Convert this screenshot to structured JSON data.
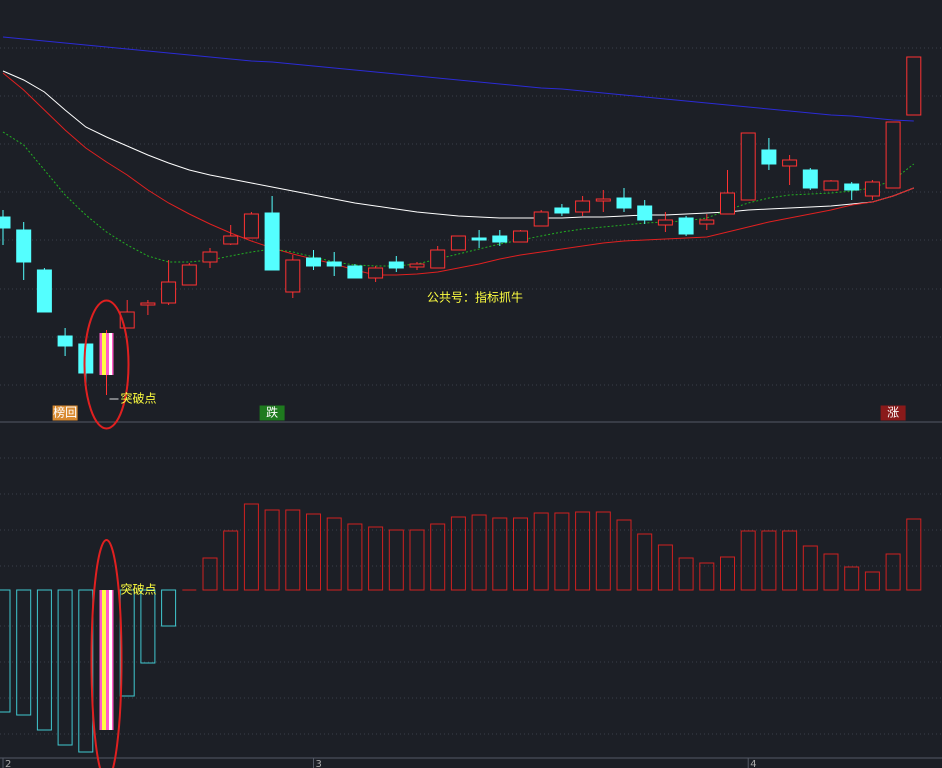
{
  "chart_data": [
    {
      "type": "candlestick",
      "open": [
        20.3,
        19.0,
        15.0,
        8.4,
        7.6,
        4.5,
        9.2,
        11.5,
        11.7,
        13.5,
        15.8,
        17.6,
        18.2,
        20.7,
        12.8,
        16.2,
        15.8,
        15.4,
        14.2,
        15.8,
        15.3,
        15.2,
        17.0,
        18.2,
        18.4,
        17.8,
        19.4,
        21.2,
        20.8,
        21.9,
        22.2,
        21.4,
        19.5,
        20.2,
        19.6,
        20.6,
        22.0,
        27.0,
        25.4,
        25.0,
        23.0,
        23.6,
        22.4,
        23.2,
        30.5
      ],
      "high": [
        21.0,
        19.8,
        15.2,
        9.2,
        8.0,
        9.0,
        12.0,
        12.0,
        16.0,
        15.7,
        17.2,
        19.5,
        20.8,
        22.4,
        16.5,
        17.0,
        16.8,
        15.6,
        15.4,
        16.4,
        15.8,
        17.4,
        18.4,
        19.0,
        19.0,
        19.0,
        21.0,
        21.6,
        22.4,
        23.0,
        23.2,
        22.0,
        20.8,
        20.4,
        20.6,
        25.0,
        28.7,
        28.2,
        26.5,
        25.2,
        24.0,
        23.8,
        24.0,
        29.8,
        36.3
      ],
      "low": [
        17.5,
        14.0,
        10.8,
        6.4,
        3.5,
        2.5,
        9.2,
        10.5,
        11.5,
        13.5,
        15.2,
        17.5,
        18.2,
        15.0,
        12.2,
        15.0,
        14.4,
        14.2,
        13.8,
        14.8,
        15.0,
        15.2,
        17.0,
        17.2,
        17.4,
        17.8,
        19.4,
        20.4,
        20.4,
        20.8,
        20.8,
        19.6,
        18.8,
        18.4,
        19.0,
        20.6,
        22.0,
        25.0,
        23.5,
        23.0,
        23.0,
        22.0,
        22.0,
        23.2,
        30.5
      ],
      "close": [
        19.2,
        15.8,
        10.8,
        7.4,
        4.7,
        8.7,
        10.8,
        11.7,
        13.8,
        15.5,
        16.8,
        18.4,
        20.6,
        15.0,
        16.0,
        15.4,
        15.4,
        14.2,
        15.2,
        15.2,
        15.6,
        17.0,
        18.4,
        18.0,
        17.8,
        18.9,
        20.8,
        20.7,
        21.9,
        22.1,
        21.2,
        20.0,
        20.0,
        18.6,
        20.0,
        22.7,
        28.7,
        25.6,
        26.0,
        23.2,
        23.9,
        23.0,
        23.8,
        29.8,
        36.3
      ],
      "up_color": "#ff3232",
      "down_color": "#54ffff",
      "ylim": [
        0,
        39
      ],
      "series": [
        {
          "color": "#2b2bd6",
          "values": [
            38.3,
            38.1,
            37.9,
            37.7,
            37.5,
            37.3,
            37.1,
            36.9,
            36.7,
            36.5,
            36.3,
            36.1,
            35.9,
            35.8,
            35.6,
            35.4,
            35.2,
            35.0,
            34.8,
            34.6,
            34.4,
            34.2,
            34.0,
            33.8,
            33.6,
            33.4,
            33.2,
            33.1,
            32.9,
            32.7,
            32.5,
            32.3,
            32.1,
            31.9,
            31.7,
            31.5,
            31.3,
            31.1,
            30.9,
            30.7,
            30.5,
            30.4,
            30.2,
            30.0,
            29.9
          ]
        },
        {
          "color": "#ffffff",
          "values": [
            34.9,
            34.0,
            32.8,
            31.0,
            29.3,
            28.3,
            27.4,
            26.5,
            25.7,
            25.0,
            24.5,
            24.1,
            23.7,
            23.3,
            22.9,
            22.5,
            22.1,
            21.7,
            21.4,
            21.1,
            20.8,
            20.6,
            20.4,
            20.3,
            20.2,
            20.2,
            20.2,
            20.2,
            20.3,
            20.3,
            20.4,
            20.5,
            20.5,
            20.6,
            20.7,
            20.8,
            21.0,
            21.1,
            21.2,
            21.3,
            21.4,
            21.6,
            21.8,
            22.4,
            23.2
          ]
        },
        {
          "color": "#e02020",
          "values": [
            34.7,
            33.0,
            31.0,
            29.0,
            27.2,
            25.8,
            24.5,
            23.0,
            21.7,
            20.6,
            19.6,
            18.7,
            17.9,
            17.2,
            16.6,
            16.1,
            15.6,
            15.0,
            14.5,
            14.5,
            14.6,
            14.8,
            15.2,
            15.6,
            16.1,
            16.5,
            16.8,
            17.1,
            17.4,
            17.7,
            17.9,
            18.0,
            18.1,
            18.2,
            18.3,
            18.8,
            19.3,
            19.8,
            20.2,
            20.6,
            21.0,
            21.5,
            21.8,
            22.4,
            23.2
          ]
        },
        {
          "color": "#22b022",
          "dashed": true,
          "values": [
            28.8,
            27.5,
            25.0,
            22.5,
            20.5,
            18.8,
            17.5,
            16.4,
            15.8,
            15.8,
            16.0,
            16.4,
            16.8,
            17.1,
            16.8,
            16.3,
            15.8,
            15.5,
            15.4,
            15.4,
            15.6,
            16.1,
            16.6,
            17.1,
            17.6,
            18.0,
            18.4,
            18.8,
            19.1,
            19.3,
            19.5,
            19.7,
            19.8,
            19.9,
            20.2,
            21.0,
            21.7,
            22.2,
            22.5,
            22.6,
            22.7,
            22.9,
            23.2,
            24.0,
            25.6
          ]
        }
      ],
      "watermark": "公共号：指标抓牛",
      "annotations": [
        {
          "text": "突破点",
          "index": 5
        }
      ],
      "signals": [
        {
          "text": "榜回",
          "index": 3,
          "color": "#d88a30"
        },
        {
          "text": "跌",
          "index": 13,
          "color": "#1e7a1e"
        },
        {
          "text": "涨",
          "index": 43,
          "color": "#8a1a1a"
        }
      ]
    },
    {
      "type": "bar",
      "categories": [
        "2",
        null,
        null,
        null,
        null,
        null,
        null,
        null,
        null,
        null,
        null,
        null,
        null,
        null,
        null,
        "3",
        null,
        null,
        null,
        null,
        null,
        null,
        null,
        null,
        null,
        null,
        null,
        null,
        null,
        null,
        null,
        null,
        null,
        null,
        null,
        null,
        "4",
        null,
        null,
        null,
        null,
        null,
        null,
        null,
        null
      ],
      "values": [
        -12.2,
        -12.5,
        -14.0,
        -15.5,
        -16.2,
        -14.0,
        -10.6,
        -7.3,
        -3.6,
        0,
        3.2,
        5.9,
        8.6,
        8.0,
        8.0,
        7.6,
        7.2,
        6.6,
        6.3,
        6.0,
        6.0,
        6.6,
        7.3,
        7.5,
        7.2,
        7.2,
        7.7,
        7.7,
        7.8,
        7.8,
        7.0,
        5.6,
        4.5,
        3.2,
        2.7,
        3.3,
        5.9,
        5.9,
        5.9,
        4.4,
        3.6,
        2.3,
        1.8,
        3.6,
        7.1
      ],
      "up_color": "#d02020",
      "down_color": "#40c8d0",
      "ylim": [
        -17.8,
        16.5
      ],
      "annotations": [
        {
          "text": "突破点",
          "index": 5
        }
      ]
    }
  ]
}
